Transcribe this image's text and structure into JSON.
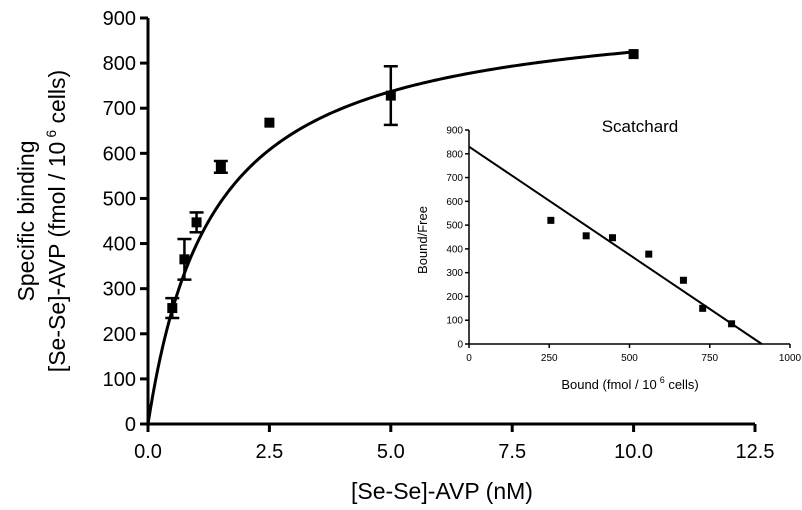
{
  "chart_data": [
    {
      "type": "scatter",
      "xlabel": "[Se-Se]-AVP (nM)",
      "ylabel_line1": "Specific binding",
      "ylabel_line2_prefix": "[Se-Se]-AVP (fmol / 10",
      "ylabel_line2_sup": "6",
      "ylabel_line2_suffix": " cells)",
      "xlim": [
        0,
        12.5
      ],
      "ylim": [
        0,
        900
      ],
      "xticks": [
        0,
        2.5,
        5,
        7.5,
        10,
        12.5
      ],
      "xtick_labels": [
        "0.0",
        "2.5",
        "5.0",
        "7.5",
        "10.0",
        "12.5"
      ],
      "yticks": [
        0,
        100,
        200,
        300,
        400,
        500,
        600,
        700,
        800,
        900
      ],
      "ytick_labels": [
        "0",
        "100",
        "200",
        "300",
        "400",
        "500",
        "600",
        "700",
        "800",
        "900"
      ],
      "points": [
        {
          "x": 0.5,
          "y": 257,
          "err": 22
        },
        {
          "x": 0.75,
          "y": 365,
          "err": 45
        },
        {
          "x": 1.0,
          "y": 447,
          "err": 22
        },
        {
          "x": 1.5,
          "y": 570,
          "err": 13
        },
        {
          "x": 2.5,
          "y": 668,
          "err": 0
        },
        {
          "x": 5.0,
          "y": 728,
          "err": 65
        },
        {
          "x": 10.0,
          "y": 820,
          "err": 0
        }
      ],
      "fit": {
        "model": "one-site saturation binding",
        "Bmax": 936,
        "Kd": 1.35
      }
    },
    {
      "type": "scatter",
      "title": "Scatchard",
      "xlabel_prefix": "Bound (fmol / 10",
      "xlabel_sup": "6",
      "xlabel_suffix": " cells)",
      "ylabel": "Bound/Free",
      "xlim": [
        0,
        1000
      ],
      "ylim": [
        0,
        900
      ],
      "xticks": [
        0,
        250,
        500,
        750,
        1000
      ],
      "xtick_labels": [
        "0",
        "250",
        "500",
        "750",
        "1000"
      ],
      "yticks": [
        0,
        100,
        200,
        300,
        400,
        500,
        600,
        700,
        800,
        900
      ],
      "ytick_labels": [
        "0",
        "100",
        "200",
        "300",
        "400",
        "500",
        "600",
        "700",
        "800",
        "900"
      ],
      "points": [
        {
          "x": 255,
          "y": 520
        },
        {
          "x": 365,
          "y": 455
        },
        {
          "x": 447,
          "y": 447
        },
        {
          "x": 560,
          "y": 378
        },
        {
          "x": 668,
          "y": 268
        },
        {
          "x": 728,
          "y": 150
        },
        {
          "x": 818,
          "y": 85
        }
      ],
      "line": {
        "x1": 0,
        "y1": 830,
        "x2": 912,
        "y2": 0
      }
    }
  ]
}
